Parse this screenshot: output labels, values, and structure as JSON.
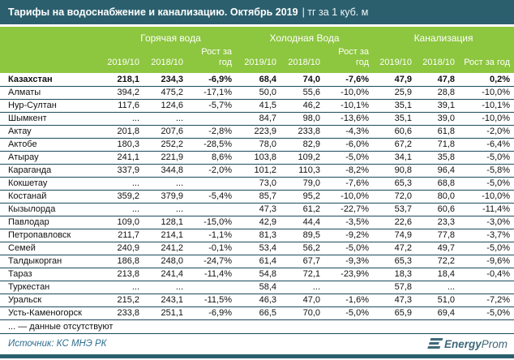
{
  "title_bar": {
    "title": "Тарифы на водоснабжение и канализацию. Октябрь 2019",
    "unit_suffix": "| тг за 1 куб. м"
  },
  "chart_data": {
    "type": "table",
    "title": "Тарифы на водоснабжение и канализацию. Октябрь 2019",
    "unit": "тг за 1 куб. м",
    "column_groups": [
      "Горячая вода",
      "Холодная Вода",
      "Канализация"
    ],
    "subcolumns": [
      "2019/10",
      "2018/10",
      "Рост за год"
    ],
    "missing_marker": "...",
    "rows": [
      {
        "name": "Казахстан",
        "bold": true,
        "values": [
          "218,1",
          "234,3",
          "-6,9%",
          "68,4",
          "74,0",
          "-7,6%",
          "47,9",
          "47,8",
          "0,2%"
        ]
      },
      {
        "name": "Алматы",
        "values": [
          "394,2",
          "475,2",
          "-17,1%",
          "50,0",
          "55,6",
          "-10,0%",
          "25,9",
          "28,8",
          "-10,0%"
        ]
      },
      {
        "name": "Нур-Султан",
        "values": [
          "117,6",
          "124,6",
          "-5,7%",
          "41,5",
          "46,2",
          "-10,1%",
          "35,1",
          "39,1",
          "-10,1%"
        ]
      },
      {
        "name": "Шымкент",
        "values": [
          "...",
          "...",
          "",
          "84,7",
          "98,0",
          "-13,6%",
          "35,1",
          "39,0",
          "-10,0%"
        ]
      },
      {
        "name": "Актау",
        "values": [
          "201,8",
          "207,6",
          "-2,8%",
          "223,9",
          "233,8",
          "-4,3%",
          "60,6",
          "61,8",
          "-2,0%"
        ]
      },
      {
        "name": "Актобе",
        "values": [
          "180,3",
          "252,2",
          "-28,5%",
          "78,0",
          "82,9",
          "-6,0%",
          "67,2",
          "71,8",
          "-6,4%"
        ]
      },
      {
        "name": "Атырау",
        "values": [
          "241,1",
          "221,9",
          "8,6%",
          "103,8",
          "109,2",
          "-5,0%",
          "34,1",
          "35,8",
          "-5,0%"
        ]
      },
      {
        "name": "Караганда",
        "values": [
          "337,9",
          "344,8",
          "-2,0%",
          "101,2",
          "110,3",
          "-8,2%",
          "90,8",
          "96,4",
          "-5,8%"
        ]
      },
      {
        "name": "Кокшетау",
        "values": [
          "...",
          "...",
          "",
          "73,0",
          "79,0",
          "-7,6%",
          "65,3",
          "68,8",
          "-5,0%"
        ]
      },
      {
        "name": "Костанай",
        "values": [
          "359,2",
          "379,9",
          "-5,4%",
          "85,7",
          "95,2",
          "-10,0%",
          "72,0",
          "80,0",
          "-10,0%"
        ]
      },
      {
        "name": "Кызылорда",
        "values": [
          "...",
          "...",
          "",
          "47,3",
          "61,2",
          "-22,7%",
          "53,7",
          "60,6",
          "-11,4%"
        ]
      },
      {
        "name": "Павлодар",
        "values": [
          "109,0",
          "128,1",
          "-15,0%",
          "42,9",
          "44,4",
          "-3,5%",
          "22,6",
          "23,3",
          "-3,0%"
        ]
      },
      {
        "name": "Петропавловск",
        "values": [
          "211,7",
          "214,1",
          "-1,1%",
          "81,3",
          "89,5",
          "-9,2%",
          "74,9",
          "77,8",
          "-3,7%"
        ]
      },
      {
        "name": "Семей",
        "values": [
          "240,9",
          "241,2",
          "-0,1%",
          "53,4",
          "56,2",
          "-5,0%",
          "47,2",
          "49,7",
          "-5,0%"
        ]
      },
      {
        "name": "Талдыкорган",
        "values": [
          "186,8",
          "248,0",
          "-24,7%",
          "61,4",
          "67,7",
          "-9,3%",
          "65,3",
          "72,2",
          "-9,6%"
        ]
      },
      {
        "name": "Тараз",
        "values": [
          "213,8",
          "241,4",
          "-11,4%",
          "54,8",
          "72,1",
          "-23,9%",
          "18,3",
          "18,4",
          "-0,4%"
        ]
      },
      {
        "name": "Туркестан",
        "values": [
          "...",
          "...",
          "",
          "58,4",
          "...",
          "",
          "57,8",
          "...",
          ""
        ]
      },
      {
        "name": "Уральск",
        "values": [
          "215,2",
          "243,1",
          "-11,5%",
          "46,3",
          "47,0",
          "-1,6%",
          "47,3",
          "51,0",
          "-7,2%"
        ]
      },
      {
        "name": "Усть-Каменогорск",
        "values": [
          "233,8",
          "251,1",
          "-6,9%",
          "66,5",
          "70,0",
          "-5,0%",
          "65,9",
          "69,4",
          "-5,0%"
        ]
      }
    ]
  },
  "footnote": "... — данные отсутствуют",
  "source": "Источник: КС МНЭ РК",
  "logo": {
    "icon": "energyprom-logo",
    "bold_text": "Energy",
    "light_text": "Prom"
  },
  "colors": {
    "header_teal": "#2C5F6E",
    "header_green": "#8DC63F",
    "row_line": "#1B4A5E",
    "source_text": "#2E6E8E",
    "logo": "#3E6879"
  }
}
